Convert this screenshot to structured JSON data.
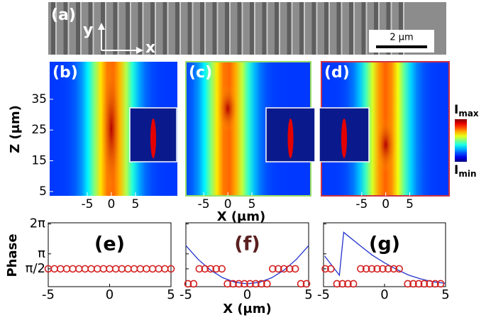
{
  "sem": {
    "label": "(a)",
    "axis_y": "y",
    "axis_x": "x",
    "scale_bar": "2 μm"
  },
  "colorbar": {
    "max": {
      "symbol": "I",
      "sub": "max"
    },
    "min": {
      "symbol": "I",
      "sub": "min"
    }
  },
  "chart_data": [
    {
      "type": "heatmap",
      "label": "(b)",
      "xlim": [
        -12.8,
        13.7
      ],
      "ylim": [
        3.6,
        47.2
      ],
      "xticks": [
        -5,
        0,
        5
      ],
      "yticks": [
        35,
        25,
        15,
        5
      ],
      "ylabel": "Z (μm)"
    },
    {
      "type": "heatmap",
      "label": "(c)",
      "xlim": [
        -8.7,
        17.2
      ],
      "xticks": [
        -5,
        0,
        5
      ],
      "xlabel": "X (μm)",
      "border": "#99dd66"
    },
    {
      "type": "heatmap",
      "label": "(d)",
      "xlim": [
        -13.4,
        13.2
      ],
      "xticks": [
        -5,
        0,
        5
      ],
      "border": "#cc3344"
    },
    {
      "type": "scatter",
      "label": "(e)",
      "ylabel": "Phase",
      "xlim": [
        -5,
        5
      ],
      "ylim": [
        -0.3,
        6.4
      ],
      "xticks": [
        -5,
        0,
        5
      ],
      "yticks": [
        {
          "value": 1.571,
          "label": "π/2"
        },
        {
          "value": 3.142,
          "label": "π"
        },
        {
          "value": 6.283,
          "label": "2π"
        }
      ],
      "markers": {
        "color": "#d42020",
        "x": [
          -5,
          -4.5,
          -4,
          -3.5,
          -3,
          -2.5,
          -2,
          -1.5,
          -1,
          -0.5,
          0,
          0.5,
          1,
          1.5,
          2,
          2.5,
          3,
          3.5,
          4,
          4.5,
          5
        ],
        "values": [
          1.571,
          1.571,
          1.571,
          1.571,
          1.571,
          1.571,
          1.571,
          1.571,
          1.571,
          1.571,
          1.571,
          1.571,
          1.571,
          1.571,
          1.571,
          1.571,
          1.571,
          1.571,
          1.571,
          1.571,
          1.571
        ]
      }
    },
    {
      "type": "scatter",
      "label": "(f)",
      "label_color": "#5a2020",
      "xlabel": "X (μm)",
      "xlim": [
        -5,
        5
      ],
      "ylim": [
        -0.3,
        6.4
      ],
      "xticks": [
        -5,
        0,
        5
      ],
      "yticks": [
        1.571,
        3.142,
        6.283
      ],
      "markers": {
        "color": "#d42020",
        "x": [
          -4.83,
          -4.37,
          -3.91,
          -3.45,
          -2.99,
          -2.53,
          -2.07,
          -1.61,
          -1.15,
          -0.69,
          -0.23,
          0.23,
          0.69,
          1.15,
          1.61,
          2.07,
          2.53,
          2.99,
          3.45,
          3.91,
          4.37,
          4.83
        ],
        "values": [
          0,
          0,
          1.571,
          1.571,
          1.571,
          1.571,
          1.571,
          0,
          0,
          0,
          0,
          0,
          0,
          0,
          0,
          1.571,
          1.571,
          1.571,
          1.571,
          1.571,
          0,
          0
        ]
      },
      "curve": {
        "color": "#2233cc",
        "x": [
          -5,
          -4,
          -3,
          -2,
          -1,
          0,
          1,
          2,
          3,
          4,
          5
        ],
        "values": [
          4.0,
          2.56,
          1.44,
          0.64,
          0.16,
          0,
          0.16,
          0.64,
          1.44,
          2.56,
          4.0
        ]
      }
    },
    {
      "type": "scatter",
      "label": "(g)",
      "xlim": [
        -5,
        5
      ],
      "ylim": [
        -0.3,
        6.4
      ],
      "xticks": [
        -5,
        0,
        5
      ],
      "yticks": [
        1.571,
        3.142,
        6.283
      ],
      "markers": {
        "color": "#d42020",
        "x": [
          -4.85,
          -4.4,
          -3.9,
          -3.45,
          -3.0,
          -2.55,
          -1.95,
          -1.5,
          -1.05,
          -0.6,
          -0.15,
          0.3,
          0.75,
          1.2,
          1.9,
          2.35,
          2.8,
          3.25,
          3.7,
          4.15,
          4.6
        ],
        "values": [
          1.571,
          1.571,
          0,
          0,
          0,
          0,
          1.571,
          1.571,
          1.571,
          1.571,
          1.571,
          1.571,
          1.571,
          1.571,
          0,
          0,
          0,
          0,
          0,
          0,
          0
        ]
      },
      "curve": {
        "color": "#2233cc",
        "x": [
          -4.9,
          -3.7,
          -3.35,
          -2,
          -1,
          0,
          1,
          2,
          3,
          4,
          5
        ],
        "values": [
          2.9,
          0.9,
          5.4,
          4.0,
          3.0,
          2.2,
          1.5,
          0.9,
          0.5,
          0.2,
          0.05
        ]
      }
    }
  ]
}
